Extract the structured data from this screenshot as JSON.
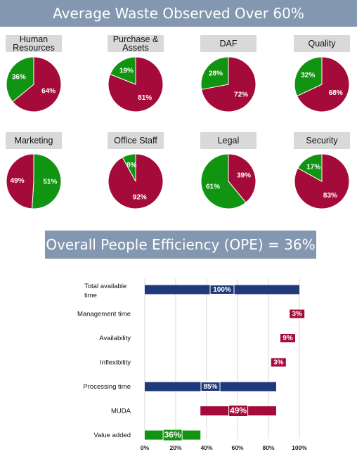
{
  "title": "Average Waste Observed Over 60%",
  "ope_title": "Overall People Efficiency (OPE) = 36%",
  "colors": {
    "waste": "#a50b3a",
    "efficient": "#119411",
    "time": "#1f3a7a",
    "banner": "#8497b0",
    "label_bg": "#d9d9d9"
  },
  "chart_data": [
    {
      "type": "pie",
      "charts": [
        {
          "label": "Human\nResources",
          "slices": [
            {
              "value": 64,
              "label": "64%",
              "color": "#a50b3a"
            },
            {
              "value": 36,
              "label": "36%",
              "color": "#119411"
            }
          ]
        },
        {
          "label": "Purchase &\nAssets",
          "slices": [
            {
              "value": 81,
              "label": "81%",
              "color": "#a50b3a"
            },
            {
              "value": 19,
              "label": "19%",
              "color": "#119411"
            }
          ]
        },
        {
          "label": "DAF",
          "slices": [
            {
              "value": 72,
              "label": "72%",
              "color": "#a50b3a"
            },
            {
              "value": 28,
              "label": "28%",
              "color": "#119411"
            }
          ]
        },
        {
          "label": "Quality",
          "slices": [
            {
              "value": 68,
              "label": "68%",
              "color": "#a50b3a"
            },
            {
              "value": 32,
              "label": "32%",
              "color": "#119411"
            }
          ]
        },
        {
          "label": "Marketing",
          "slices": [
            {
              "value": 51,
              "label": "51%",
              "color": "#119411"
            },
            {
              "value": 49,
              "label": "49%",
              "color": "#a50b3a"
            }
          ]
        },
        {
          "label": "Office Staff",
          "slices": [
            {
              "value": 92,
              "label": "92%",
              "color": "#a50b3a"
            },
            {
              "value": 8,
              "label": "8%",
              "color": "#119411"
            }
          ]
        },
        {
          "label": "Legal",
          "slices": [
            {
              "value": 39,
              "label": "39%",
              "color": "#a50b3a"
            },
            {
              "value": 61,
              "label": "61%",
              "color": "#119411"
            }
          ]
        },
        {
          "label": "Security",
          "slices": [
            {
              "value": 83,
              "label": "83%",
              "color": "#a50b3a"
            },
            {
              "value": 17,
              "label": "17%",
              "color": "#119411"
            }
          ]
        }
      ]
    },
    {
      "type": "bar",
      "orientation": "horizontal",
      "stacking": "waterfall",
      "categories": [
        "Total available time",
        "Management time",
        "Availability",
        "Inflexibility",
        "Processing time",
        "MUDA",
        "Value added"
      ],
      "bars": [
        {
          "start": 0,
          "end": 100,
          "label": "100%",
          "color": "#1f3a7a"
        },
        {
          "start": 97,
          "end": 100,
          "label": "3%",
          "color": "#a50b3a"
        },
        {
          "start": 88,
          "end": 97,
          "label": "9%",
          "color": "#a50b3a"
        },
        {
          "start": 85,
          "end": 88,
          "label": "3%",
          "color": "#a50b3a"
        },
        {
          "start": 0,
          "end": 85,
          "label": "85%",
          "color": "#1f3a7a"
        },
        {
          "start": 36,
          "end": 85,
          "label": "49%",
          "color": "#a50b3a"
        },
        {
          "start": 0,
          "end": 36,
          "label": "36%",
          "color": "#119411"
        }
      ],
      "xlim": [
        0,
        100
      ],
      "xticks": [
        "0%",
        "20%",
        "40%",
        "60%",
        "80%",
        "100%"
      ],
      "grid": true
    }
  ]
}
